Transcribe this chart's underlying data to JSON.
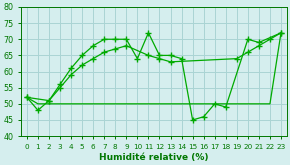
{
  "xlabel": "Humidité relative (%)",
  "bg_color": "#d5eeee",
  "grid_color": "#aad4d4",
  "line_color": "#00aa00",
  "xlim": [
    -0.5,
    23.5
  ],
  "ylim": [
    40,
    80
  ],
  "yticks": [
    40,
    45,
    50,
    55,
    60,
    65,
    70,
    75,
    80
  ],
  "xticks": [
    0,
    1,
    2,
    3,
    4,
    5,
    6,
    7,
    8,
    9,
    10,
    11,
    12,
    13,
    14,
    15,
    16,
    17,
    18,
    19,
    20,
    21,
    22,
    23
  ],
  "line1_x": [
    0,
    1,
    2,
    3,
    4,
    5,
    6,
    7,
    8,
    9,
    10,
    11,
    12,
    13,
    14,
    15,
    16,
    17,
    18,
    20,
    21,
    23
  ],
  "line1_y": [
    52,
    48,
    51,
    56,
    61,
    65,
    68,
    70,
    70,
    70,
    64,
    72,
    65,
    65,
    64,
    45,
    46,
    50,
    49,
    70,
    69,
    72
  ],
  "line2_x": [
    0,
    2,
    3,
    4,
    5,
    6,
    7,
    8,
    9,
    11,
    12,
    13,
    19,
    20,
    21,
    22,
    23
  ],
  "line2_y": [
    52,
    51,
    55,
    59,
    62,
    64,
    66,
    67,
    68,
    65,
    64,
    63,
    64,
    66,
    68,
    70,
    72
  ],
  "line3_x": [
    0,
    1,
    2,
    8,
    9,
    10,
    11,
    13,
    14,
    15,
    16,
    17,
    18,
    19,
    21,
    22,
    23
  ],
  "line3_y": [
    52,
    50,
    50,
    50,
    50,
    50,
    50,
    50,
    50,
    50,
    50,
    50,
    50,
    50,
    50,
    50,
    72
  ]
}
